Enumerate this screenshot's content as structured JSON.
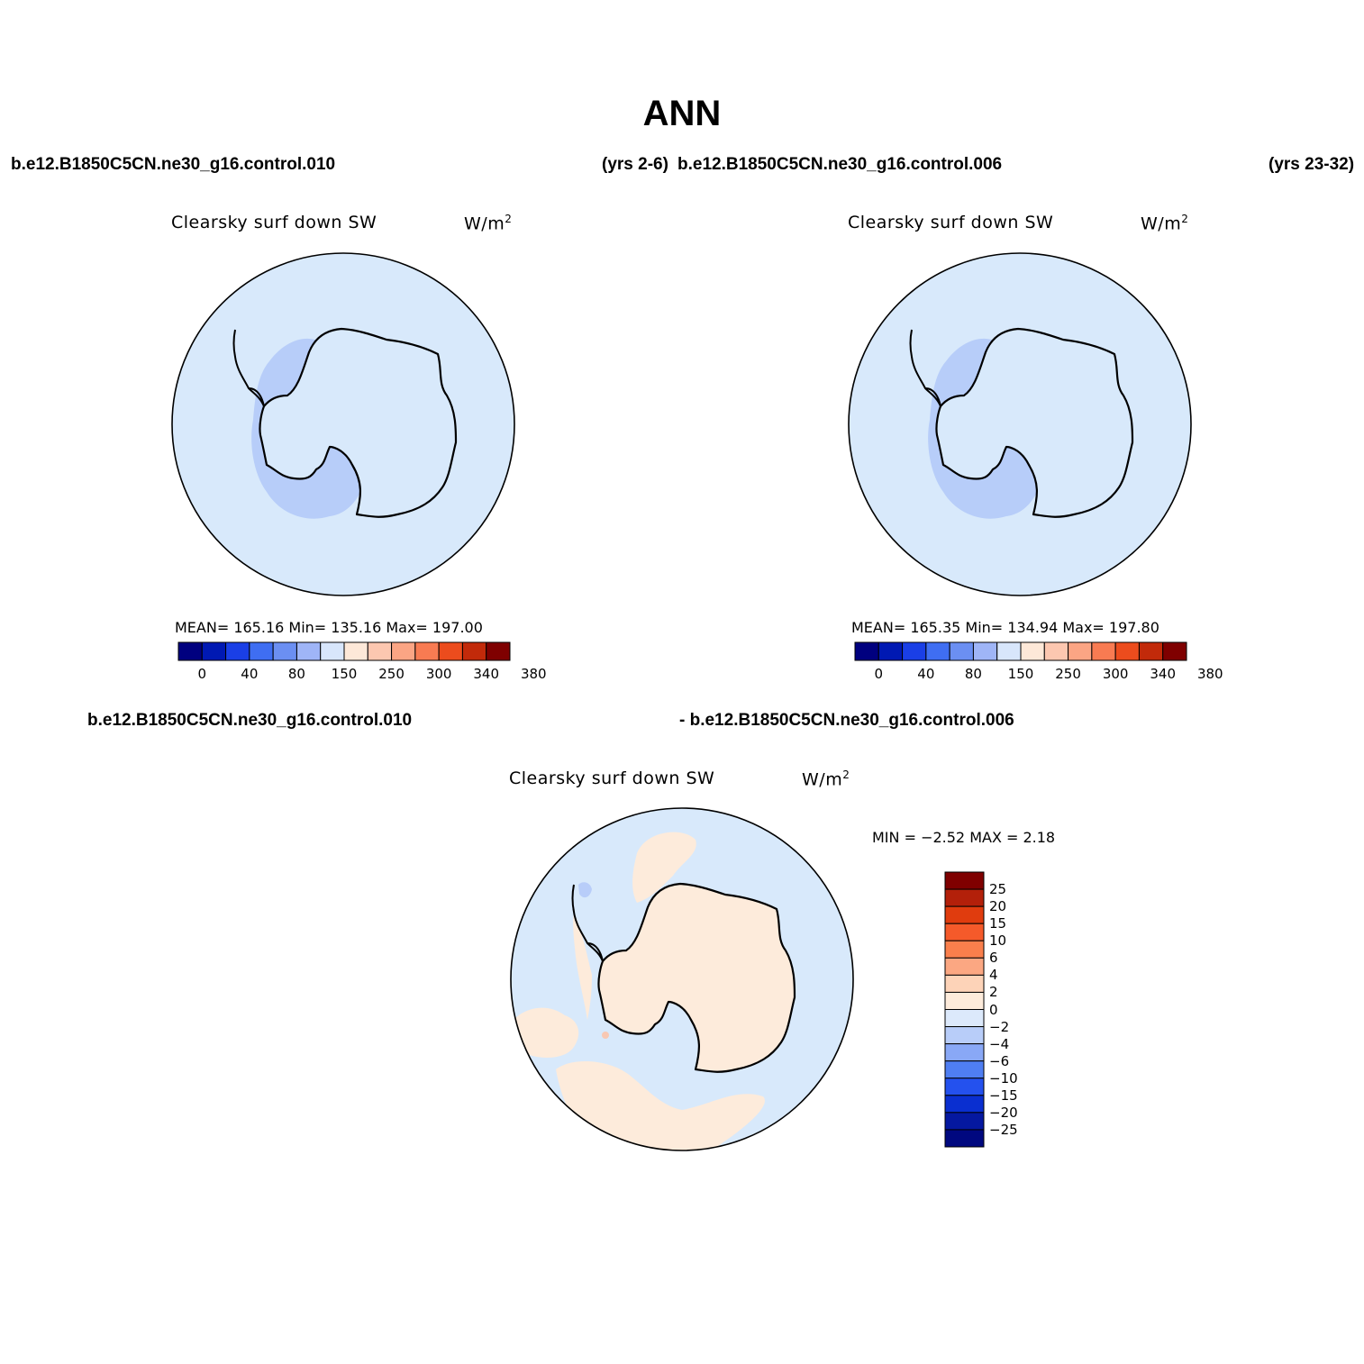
{
  "title": "ANN",
  "header": {
    "case1": "b.e12.B1850C5CN.ne30_g16.control.010",
    "years1": "(yrs 2-6)",
    "case2": "b.e12.B1850C5CN.ne30_g16.control.006",
    "years2": "(yrs 23-32)"
  },
  "panels": [
    {
      "variable": "Clearsky  surf  down  SW",
      "units": "W/m",
      "units_sup": "2",
      "stats": "MEAN=  165.16    Min=  135.16    Max=  197.00",
      "colorbar": {
        "levels": [
          "0",
          "40",
          "80",
          "150",
          "250",
          "300",
          "340",
          "380"
        ],
        "colors": [
          "#00007f",
          "#0019b3",
          "#1a3fe6",
          "#3f6ef2",
          "#6b8ff2",
          "#9fb5f7",
          "#d8e6fb",
          "#fde8d8",
          "#fcc7b0",
          "#fba584",
          "#f87b52",
          "#ec4c1d",
          "#c22a0a",
          "#7f0000"
        ]
      }
    },
    {
      "variable": "Clearsky  surf  down  SW",
      "units": "W/m",
      "units_sup": "2",
      "stats": "MEAN=  165.35    Min=  134.94    Max=  197.80",
      "colorbar": {
        "levels": [
          "0",
          "40",
          "80",
          "150",
          "250",
          "300",
          "340",
          "380"
        ],
        "colors": [
          "#00007f",
          "#0019b3",
          "#1a3fe6",
          "#3f6ef2",
          "#6b8ff2",
          "#9fb5f7",
          "#d8e6fb",
          "#fde8d8",
          "#fcc7b0",
          "#fba584",
          "#f87b52",
          "#ec4c1d",
          "#c22a0a",
          "#7f0000"
        ]
      }
    },
    {
      "case_a": "b.e12.B1850C5CN.ne30_g16.control.010",
      "case_b": "- b.e12.B1850C5CN.ne30_g16.control.006",
      "variable": "Clearsky  surf  down  SW",
      "units": "W/m",
      "units_sup": "2",
      "stats": "MIN =    −2.52  MAX =     2.18",
      "colorbar": {
        "levels": [
          "25",
          "20",
          "15",
          "10",
          "6",
          "4",
          "2",
          "0",
          "−2",
          "−4",
          "−6",
          "−10",
          "−15",
          "−20",
          "−25"
        ],
        "colors": [
          "#7f0000",
          "#b3200a",
          "#e03c0e",
          "#f55a2a",
          "#fa7f4c",
          "#fba782",
          "#fdd3b8",
          "#fdebdb",
          "#dce9fb",
          "#b8cdf9",
          "#89a8f6",
          "#4f7ef2",
          "#2451ee",
          "#0a2fd0",
          "#0518a0",
          "#00087f"
        ]
      }
    }
  ],
  "map_colors": {
    "ocean": "#d8e9fb",
    "inner": "#b7cdf9",
    "positive": "#fdebdb",
    "negative": "#b8cdf9",
    "strong_positive": "#f8c8b3"
  }
}
